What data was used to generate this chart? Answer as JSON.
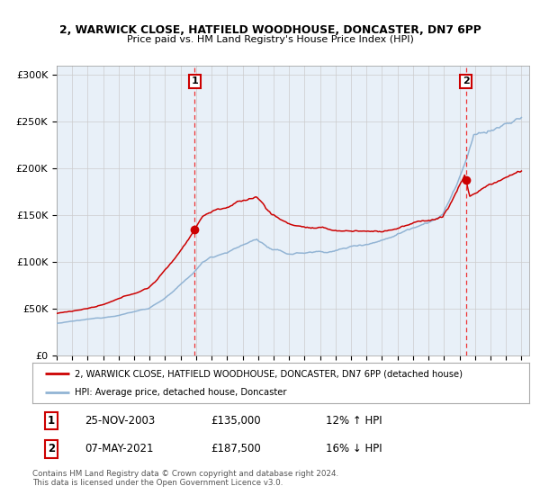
{
  "title1": "2, WARWICK CLOSE, HATFIELD WOODHOUSE, DONCASTER, DN7 6PP",
  "title2": "Price paid vs. HM Land Registry's House Price Index (HPI)",
  "hpi_color": "#92b4d4",
  "price_color": "#cc0000",
  "marker_color": "#cc0000",
  "plot_bg": "#e8f0f8",
  "transaction1_date": "25-NOV-2003",
  "transaction1_price": 135000,
  "transaction1_hpi": "12% ↑ HPI",
  "transaction2_date": "07-MAY-2021",
  "transaction2_price": 187500,
  "transaction2_hpi": "16% ↓ HPI",
  "legend_line1": "2, WARWICK CLOSE, HATFIELD WOODHOUSE, DONCASTER, DN7 6PP (detached house)",
  "legend_line2": "HPI: Average price, detached house, Doncaster",
  "footer": "Contains HM Land Registry data © Crown copyright and database right 2024.\nThis data is licensed under the Open Government Licence v3.0.",
  "ylim": [
    0,
    310000
  ],
  "year_start": 1995,
  "year_end": 2025,
  "vline_color": "#ee3333"
}
